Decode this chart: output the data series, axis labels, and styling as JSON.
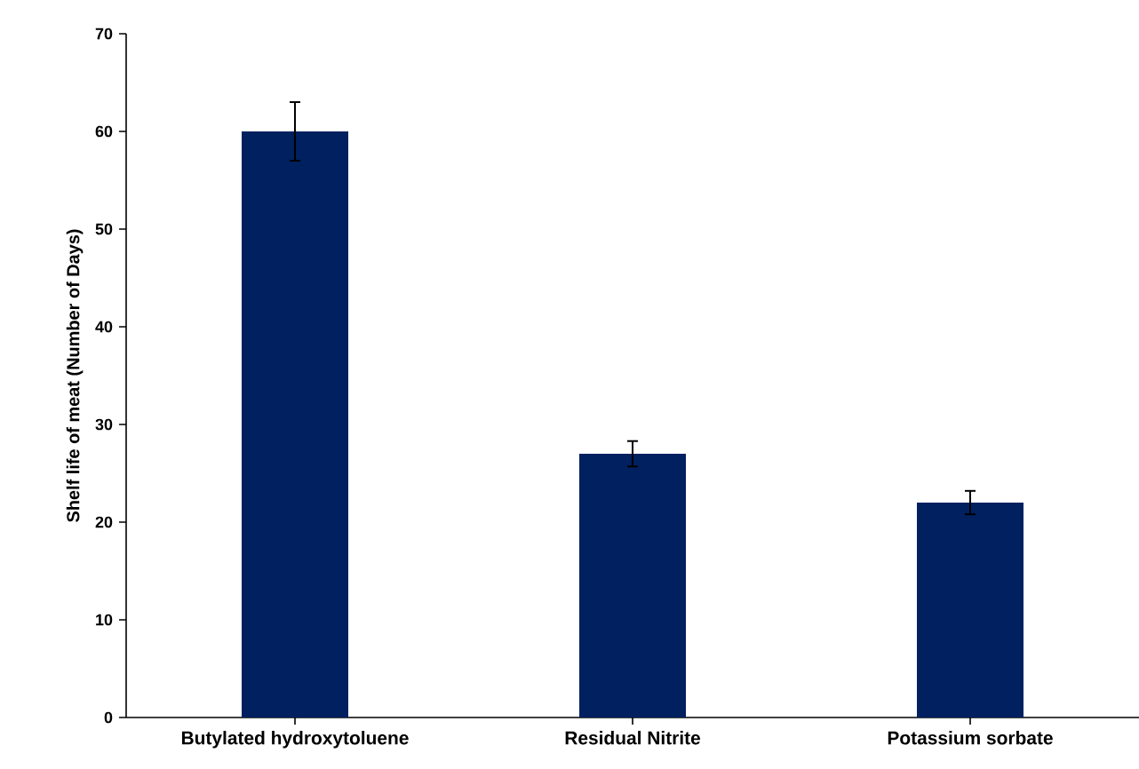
{
  "chart_data": {
    "type": "bar",
    "ylabel": "Shelf life of meat (Number of Days)",
    "categories": [
      "Butylated hydroxytoluene",
      "Residual Nitrite",
      "Potassium sorbate"
    ],
    "values": [
      60,
      27,
      22
    ],
    "errors": [
      3,
      1.3,
      1.2
    ],
    "color": "#002060",
    "ylim": [
      0,
      70
    ],
    "yticks": [
      0,
      10,
      20,
      30,
      40,
      50,
      60,
      70
    ]
  }
}
